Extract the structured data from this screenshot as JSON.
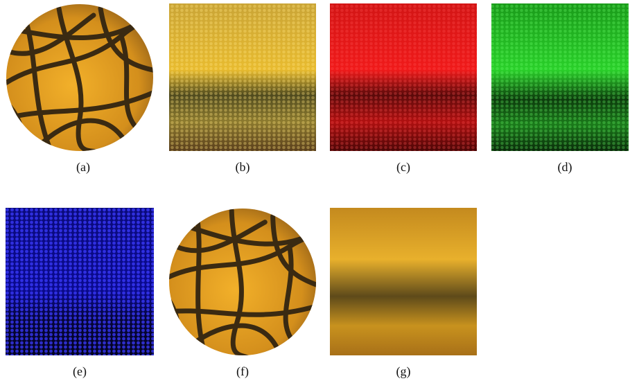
{
  "figure": {
    "panels": [
      {
        "label": "(a)"
      },
      {
        "label": "(b)"
      },
      {
        "label": "(c)"
      },
      {
        "label": "(d)"
      },
      {
        "label": "(e)"
      },
      {
        "label": "(f)"
      },
      {
        "label": "(g)"
      }
    ]
  }
}
